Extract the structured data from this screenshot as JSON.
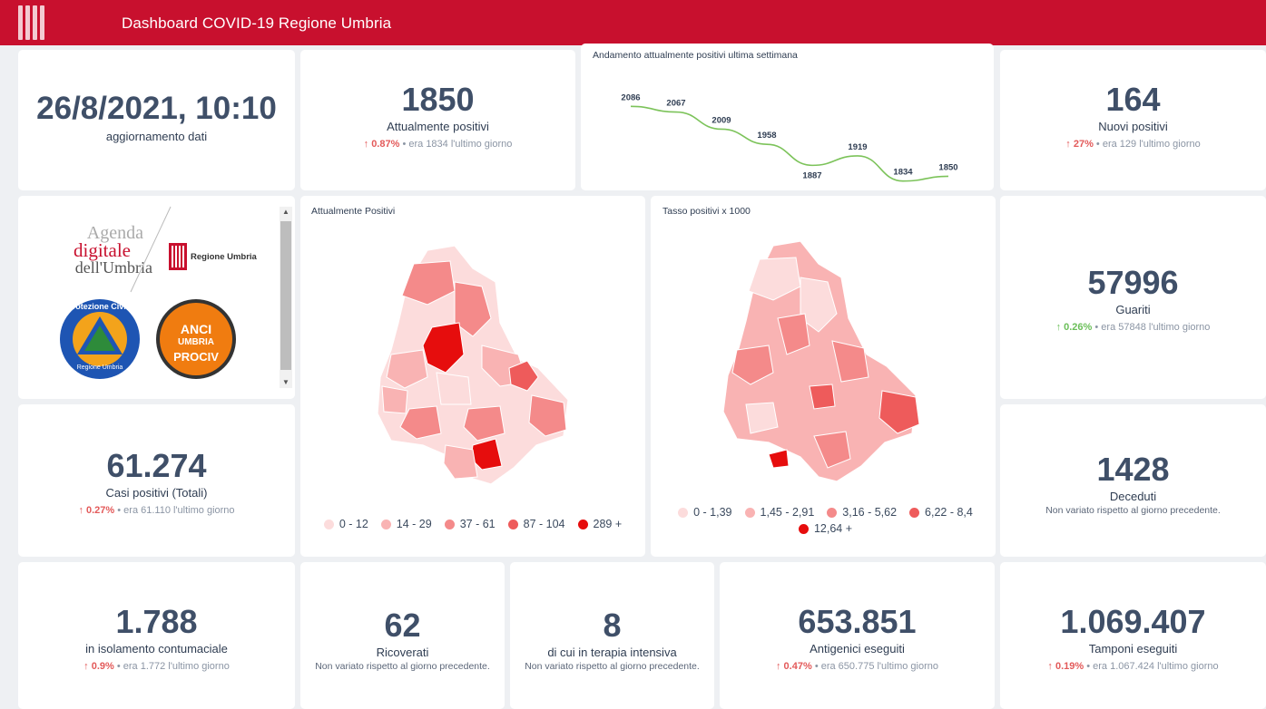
{
  "header": {
    "title": "Dashboard COVID-19 Regione Umbria"
  },
  "update": {
    "value": "26/8/2021, 10:10",
    "label": "aggiornamento dati"
  },
  "positivi": {
    "value": "1850",
    "label": "Attualmente positivi",
    "pct": "0.87%",
    "note": "• era 1834  l'ultimo giorno"
  },
  "trend": {
    "title": "Andamento attualmente positivi ultima settimana",
    "chart_data": {
      "type": "line",
      "title": "Andamento attualmente positivi ultima settimana",
      "values": [
        2086,
        2067,
        2009,
        1958,
        1887,
        1919,
        1834,
        1850
      ],
      "labels": [
        "2086",
        "2067",
        "2009",
        "1958",
        "1887",
        "1919",
        "1834",
        "1850"
      ],
      "color": "#7cc35a"
    }
  },
  "nuovi": {
    "value": "164",
    "label": "Nuovi positivi",
    "pct": "27%",
    "note": "• era 129  l'ultimo giorno"
  },
  "logos": {
    "agenda_1": "Agenda",
    "agenda_2": "digitale",
    "agenda_3": "dell'Umbria",
    "regione": "Regione Umbria",
    "protezione": "Protezione Civile",
    "protezione_sub": "Regione Umbria",
    "anci_1": "ANCI",
    "anci_2": "UMBRIA",
    "anci_3": "PROCIV"
  },
  "map1": {
    "title": "Attualmente Positivi",
    "legend": [
      {
        "label": "0 - 12",
        "color": "#fcdcdc"
      },
      {
        "label": "14 - 29",
        "color": "#f9b3b3"
      },
      {
        "label": "37 - 61",
        "color": "#f48a8a"
      },
      {
        "label": "87 - 104",
        "color": "#ee5b5b"
      },
      {
        "label": "289 +",
        "color": "#e60d0d"
      }
    ]
  },
  "map2": {
    "title": "Tasso positivi x 1000",
    "legend": [
      {
        "label": "0 - 1,39",
        "color": "#fcdcdc"
      },
      {
        "label": "1,45 - 2,91",
        "color": "#f9b3b3"
      },
      {
        "label": "3,16 - 5,62",
        "color": "#f48a8a"
      },
      {
        "label": "6,22 - 8,4",
        "color": "#ee5b5b"
      },
      {
        "label": "12,64 +",
        "color": "#e60d0d"
      }
    ]
  },
  "guariti": {
    "value": "57996",
    "label": "Guariti",
    "pct": "0.26%",
    "note": "• era 57848  l'ultimo giorno"
  },
  "casi": {
    "value": "61.274",
    "label": "Casi positivi (Totali)",
    "pct": "0.27%",
    "note": "• era 61.110  l'ultimo giorno"
  },
  "deceduti": {
    "value": "1428",
    "label": "Deceduti",
    "sub": "Non variato rispetto al giorno precedente."
  },
  "isolamento": {
    "value": "1.788",
    "label": "in isolamento contumaciale",
    "pct": "0.9%",
    "note": "• era 1.772  l'ultimo giorno"
  },
  "ricoverati": {
    "value": "62",
    "label": "Ricoverati",
    "sub": "Non variato rispetto al giorno precedente."
  },
  "intensiva": {
    "value": "8",
    "label": "di cui in terapia intensiva",
    "sub": "Non variato rispetto al giorno precedente."
  },
  "antigenici": {
    "value": "653.851",
    "label": "Antigenici eseguiti",
    "pct": "0.47%",
    "note": "• era 650.775  l'ultimo giorno"
  },
  "tamponi": {
    "value": "1.069.407",
    "label": "Tamponi eseguiti",
    "pct": "0.19%",
    "note": "• era 1.067.424  l'ultimo giorno"
  },
  "colors": {
    "brand": "#c8102e",
    "kpi_text": "#3f4f68",
    "up_red": "#e35a5a",
    "up_green": "#6bbf59"
  },
  "icons": {
    "arrow_up": "↑"
  }
}
